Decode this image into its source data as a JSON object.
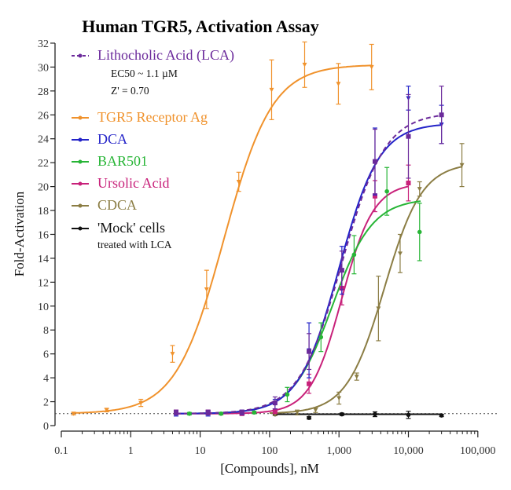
{
  "chart_data": {
    "type": "scatter",
    "title": "Human TGR5, Activation Assay",
    "xlabel": "[Compounds], nM",
    "ylabel": "Fold-Activation",
    "xscale": "log",
    "xlim": [
      0.1,
      100000
    ],
    "ylim": [
      0,
      32
    ],
    "xticks": [
      0.1,
      1,
      10,
      100,
      1000,
      10000,
      100000
    ],
    "xtick_labels": [
      "0.1",
      "1",
      "10",
      "100",
      "1,000",
      "10,000",
      "100,000"
    ],
    "yticks": [
      0,
      2,
      4,
      6,
      8,
      10,
      12,
      14,
      16,
      18,
      20,
      22,
      24,
      26,
      28,
      30,
      32
    ],
    "ytick_labels": [
      "0",
      "2",
      "4",
      "6",
      "8",
      "10",
      "12",
      "14",
      "16",
      "18",
      "20",
      "22",
      "24",
      "26",
      "28",
      "30",
      "32"
    ],
    "baseline": 1,
    "legend_position": "top-left",
    "series": [
      {
        "name": "Lithocholic Acid (LCA)",
        "color": "#6b2a9b",
        "dashed": true,
        "marker": "square",
        "notes": [
          "EC50 ~ 1.1 µM",
          "Z' = 0.70"
        ],
        "fit": {
          "bottom": 1,
          "top": 26.2,
          "ec50": 1100,
          "hill": 1.4,
          "xmin": 4.5,
          "xmax": 30000
        },
        "x": [
          4.5,
          13,
          40,
          120,
          370,
          1100,
          3300,
          10000,
          30000
        ],
        "y": [
          1.1,
          1.1,
          1.1,
          1.9,
          6.2,
          13.0,
          22.1,
          24.2,
          26.0
        ],
        "err": [
          0.2,
          0.2,
          0.2,
          0.5,
          1.5,
          1.6,
          2.7,
          3.5,
          2.4
        ]
      },
      {
        "name": "TGR5 Receptor Ag",
        "color": "#f0922c",
        "dashed": false,
        "marker": "triangle",
        "fit": {
          "bottom": 1,
          "top": 30.2,
          "ec50": 22,
          "hill": 1.25,
          "xmin": 0.15,
          "xmax": 3000
        },
        "x": [
          0.15,
          0.45,
          1.4,
          4,
          12.4,
          36,
          107,
          320,
          980,
          2950
        ],
        "y": [
          1.0,
          1.3,
          1.9,
          6.0,
          11.4,
          20.4,
          28.1,
          30.2,
          28.6,
          30.0
        ],
        "err": [
          0.1,
          0.15,
          0.3,
          0.7,
          1.6,
          0.8,
          2.5,
          1.9,
          1.7,
          1.9
        ]
      },
      {
        "name": "DCA",
        "color": "#2323c8",
        "dashed": false,
        "marker": "triangle",
        "fit": {
          "bottom": 1,
          "top": 25.3,
          "ec50": 1000,
          "hill": 1.5,
          "xmin": 4.5,
          "xmax": 30000
        },
        "x": [
          4.5,
          13,
          40,
          120,
          370,
          1100,
          3300,
          10000,
          30000
        ],
        "y": [
          1.0,
          1.0,
          1.1,
          1.8,
          6.3,
          13.0,
          22.1,
          27.4,
          25.2
        ],
        "err": [
          0.2,
          0.2,
          0.2,
          0.4,
          2.3,
          2.0,
          2.8,
          1.0,
          1.6
        ]
      },
      {
        "name": "BAR501",
        "color": "#27b536",
        "dashed": false,
        "marker": "circle",
        "fit": {
          "bottom": 1,
          "top": 19,
          "ec50": 800,
          "hill": 1.5,
          "xmin": 7,
          "xmax": 15000
        },
        "x": [
          7,
          20,
          60,
          180,
          550,
          1650,
          4900,
          14500
        ],
        "y": [
          1.0,
          1.0,
          1.1,
          2.6,
          7.4,
          14.3,
          19.6,
          16.2
        ],
        "err": [
          0.1,
          0.1,
          0.1,
          0.6,
          1.2,
          1.6,
          2.0,
          2.4
        ]
      },
      {
        "name": "Ursolic Acid",
        "color": "#c8217a",
        "dashed": false,
        "marker": "square",
        "fit": {
          "bottom": 1,
          "top": 20.3,
          "ec50": 1100,
          "hill": 1.9,
          "xmin": 4.5,
          "xmax": 10000
        },
        "x": [
          4.5,
          13,
          40,
          120,
          370,
          1100,
          3300,
          10000
        ],
        "y": [
          1.1,
          1.1,
          1.0,
          1.2,
          3.5,
          11.5,
          19.2,
          20.3
        ],
        "err": [
          0.2,
          0.2,
          0.1,
          0.2,
          0.8,
          1.4,
          1.3,
          1.5
        ]
      },
      {
        "name": "CDCA",
        "color": "#8b7d44",
        "dashed": false,
        "marker": "triangle",
        "fit": {
          "bottom": 1,
          "top": 22,
          "ec50": 4500,
          "hill": 1.6,
          "xmin": 100,
          "xmax": 60000
        },
        "x": [
          120,
          250,
          460,
          1000,
          1800,
          3700,
          7600,
          14500,
          59000
        ],
        "y": [
          0.95,
          1.1,
          1.3,
          2.3,
          4.1,
          9.8,
          14.4,
          19.8,
          21.8
        ],
        "err": [
          0.1,
          0.2,
          0.2,
          0.5,
          0.3,
          2.7,
          1.6,
          0.6,
          1.8
        ]
      },
      {
        "name": "'Mock' cells",
        "sublabel": "treated with LCA",
        "color": "#111111",
        "dashed": false,
        "marker": "circle",
        "fit": {
          "flat": 0.95,
          "xmin": 120,
          "xmax": 30000
        },
        "x": [
          120,
          370,
          1100,
          3300,
          10000,
          30000
        ],
        "y": [
          0.95,
          0.65,
          0.95,
          0.95,
          0.9,
          0.85
        ],
        "err": [
          0.1,
          0.1,
          0.1,
          0.2,
          0.3,
          0.1
        ]
      }
    ]
  }
}
